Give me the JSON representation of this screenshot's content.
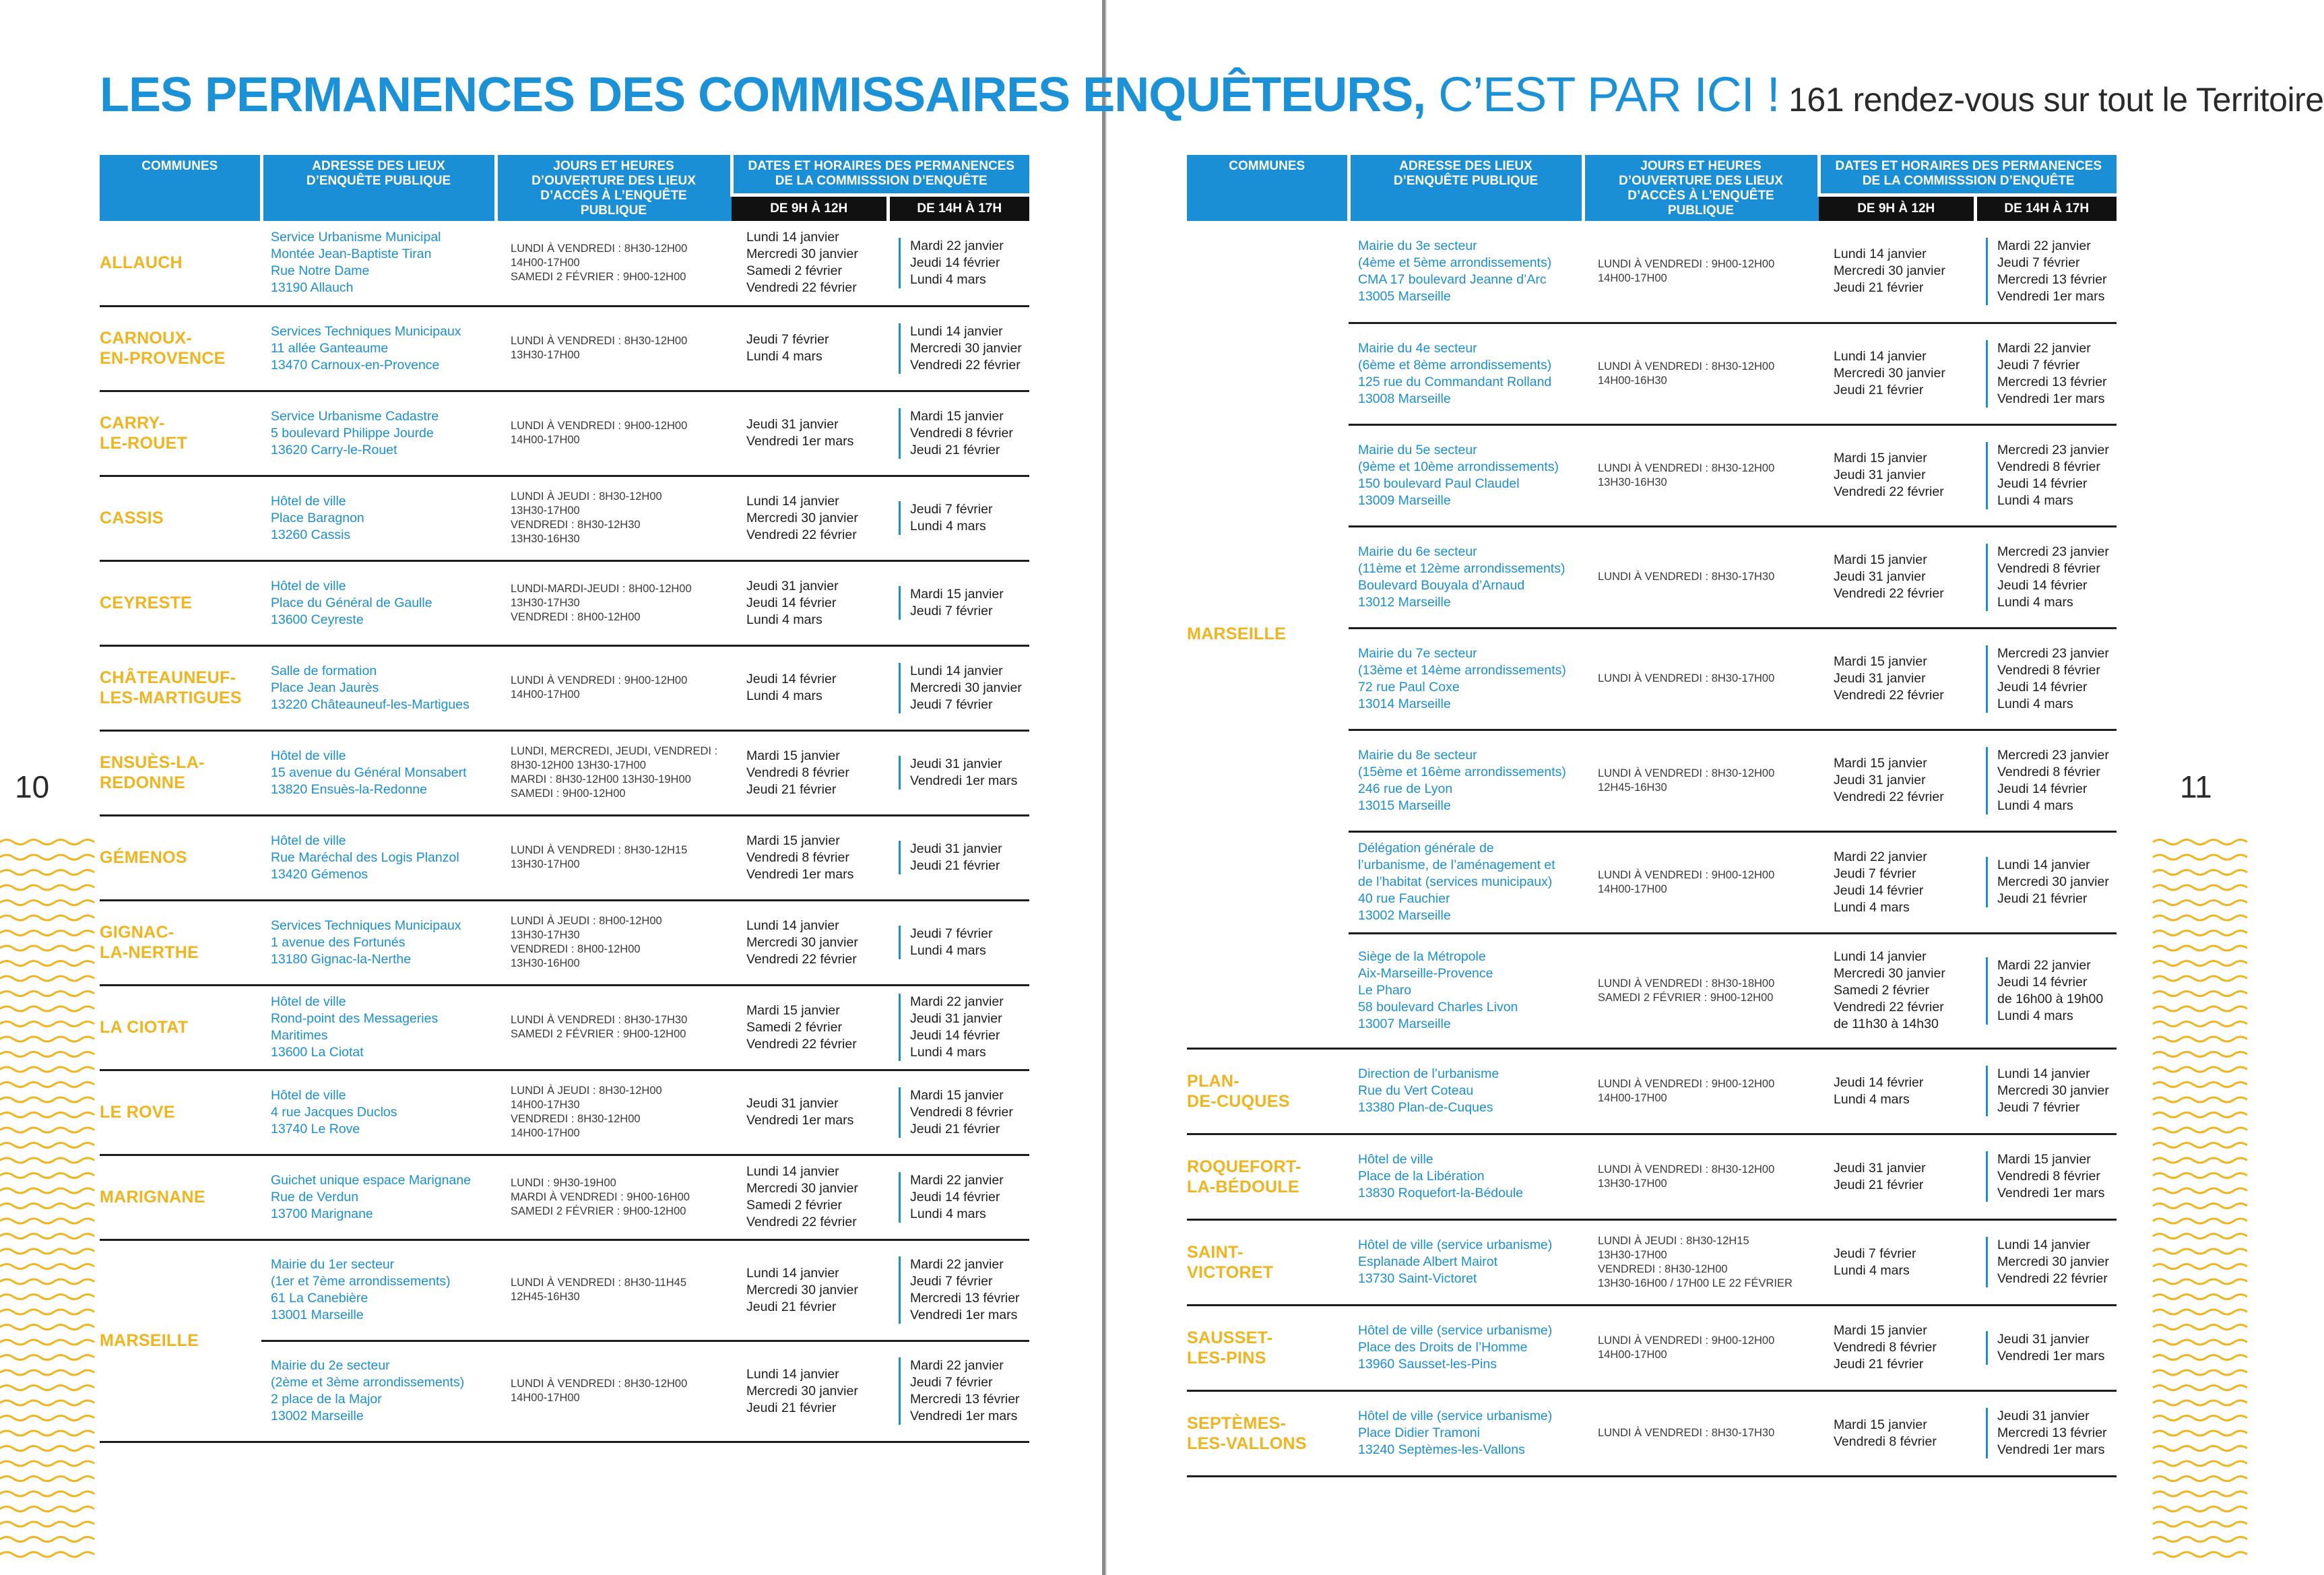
{
  "header": {
    "title_bold": "LES PERMANENCES DES COMMISSAIRES ENQUÊTEURS,",
    "title_light": " C’EST PAR ICI !",
    "title_sub": " 161 rendez-vous sur tout le Territoire"
  },
  "page_left": "10",
  "page_right": "11",
  "columns": {
    "communes": "COMMUNES",
    "adresse": "ADRESSE DES LIEUX\nD’ENQUÊTE PUBLIQUE",
    "jours": "JOURS ET HEURES\nD’OUVERTURE DES LIEUX\nD’ACCÈS À L’ENQUÊTE\nPUBLIQUE",
    "dates": "DATES ET HORAIRES DES PERMANENCES\nDE LA COMMISSSION D’ENQUÊTE",
    "am": "DE 9H À 12H",
    "pm": "DE 14H À 17H"
  },
  "left_rows": [
    {
      "commune": "ALLAUCH",
      "address": "Service Urbanisme Municipal\nMontée Jean-Baptiste Tiran\nRue Notre Dame\n13190 Allauch",
      "hours": "LUNDI À VENDREDI : 8H30-12H00\n14H00-17H00\nSAMEDI 2 FÉVRIER : 9H00-12H00",
      "am": "Lundi 14 janvier\nMercredi 30 janvier\nSamedi 2 février\nVendredi 22 février",
      "pm": "Mardi 22 janvier\nJeudi 14 février\nLundi 4 mars"
    },
    {
      "commune": "CARNOUX-\nEN-PROVENCE",
      "address": "Services Techniques Municipaux\n11 allée Ganteaume\n13470 Carnoux-en-Provence",
      "hours": "LUNDI À VENDREDI : 8H30-12H00\n13H30-17H00",
      "am": "Jeudi 7 février\nLundi 4 mars",
      "pm": "Lundi 14 janvier\nMercredi 30 janvier\nVendredi 22 février"
    },
    {
      "commune": "CARRY-\nLE-ROUET",
      "address": "Service Urbanisme Cadastre\n5 boulevard Philippe Jourde\n13620 Carry-le-Rouet",
      "hours": "LUNDI À VENDREDI : 9H00-12H00\n14H00-17H00",
      "am": "Jeudi 31 janvier\nVendredi 1er mars",
      "pm": "Mardi 15 janvier\nVendredi 8 février\nJeudi 21 février"
    },
    {
      "commune": "CASSIS",
      "address": "Hôtel de ville\nPlace Baragnon\n13260 Cassis",
      "hours": "LUNDI À JEUDI : 8H30-12H00\n13H30-17H00\nVENDREDI : 8H30-12H30\n13H30-16H30",
      "am": "Lundi 14 janvier\nMercredi 30 janvier\nVendredi 22 février",
      "pm": "Jeudi 7 février\nLundi 4 mars"
    },
    {
      "commune": "CEYRESTE",
      "address": "Hôtel de ville\nPlace du Général de Gaulle\n13600 Ceyreste",
      "hours": "LUNDI-MARDI-JEUDI : 8H00-12H00\n13H30-17H30\nVENDREDI : 8H00-12H00",
      "am": "Jeudi 31 janvier\nJeudi 14 février\nLundi 4 mars",
      "pm": "Mardi 15 janvier\nJeudi 7 février"
    },
    {
      "commune": "CHÂTEAUNEUF-\nLES-MARTIGUES",
      "address": "Salle de formation\nPlace Jean Jaurès\n13220 Châteauneuf-les-Martigues",
      "hours": "LUNDI À VENDREDI : 9H00-12H00\n14H00-17H00",
      "am": "Jeudi 14 février\nLundi 4 mars",
      "pm": "Lundi 14 janvier\nMercredi 30 janvier\nJeudi 7 février"
    },
    {
      "commune": "ENSUÈS-LA-\nREDONNE",
      "address": "Hôtel de ville\n15 avenue du Général Monsabert\n13820 Ensuès-la-Redonne",
      "hours": "LUNDI, MERCREDI, JEUDI, VENDREDI :\n8H30-12H00 13H30-17H00\nMARDI : 8H30-12H00 13H30-19H00\nSAMEDI : 9H00-12H00",
      "am": "Mardi 15 janvier\nVendredi 8 février\nJeudi 21 février",
      "pm": "Jeudi 31 janvier\nVendredi 1er mars"
    },
    {
      "commune": "GÉMENOS",
      "address": "Hôtel de ville\nRue Maréchal des Logis Planzol\n13420 Gémenos",
      "hours": "LUNDI À VENDREDI : 8H30-12H15\n13H30-17H00",
      "am": "Mardi 15 janvier\nVendredi 8 février\nVendredi 1er mars",
      "pm": "Jeudi 31 janvier\nJeudi 21 février"
    },
    {
      "commune": "GIGNAC-\nLA-NERTHE",
      "address": "Services Techniques Municipaux\n1 avenue des Fortunés\n13180 Gignac-la-Nerthe",
      "hours": "LUNDI À JEUDI : 8H00-12H00\n13H30-17H30\nVENDREDI : 8H00-12H00\n13H30-16H00",
      "am": "Lundi 14 janvier\nMercredi 30 janvier\nVendredi 22 février",
      "pm": "Jeudi 7 février\nLundi 4 mars"
    },
    {
      "commune": "LA CIOTAT",
      "address": "Hôtel de ville\nRond-point des Messageries\nMaritimes\n13600 La Ciotat",
      "hours": "LUNDI À VENDREDI : 8H30-17H30\nSAMEDI 2 FÉVRIER : 9H00-12H00",
      "am": "Mardi 15 janvier\nSamedi 2 février\nVendredi 22 février",
      "pm": "Mardi 22 janvier\nJeudi 31 janvier\nJeudi 14 février\nLundi 4 mars"
    },
    {
      "commune": "LE ROVE",
      "address": "Hôtel de ville\n4 rue Jacques Duclos\n13740 Le Rove",
      "hours": "LUNDI À JEUDI : 8H30-12H00\n14H00-17H30\nVENDREDI : 8H30-12H00\n14H00-17H00",
      "am": "Jeudi 31 janvier\nVendredi 1er mars",
      "pm": "Mardi 15 janvier\nVendredi 8 février\nJeudi 21 février"
    },
    {
      "commune": "MARIGNANE",
      "address": "Guichet unique espace Marignane\nRue de Verdun\n13700 Marignane",
      "hours": "LUNDI : 9H30-19H00\nMARDI À VENDREDI : 9H00-16H00\nSAMEDI 2 FÉVRIER : 9H00-12H00",
      "am": "Lundi 14 janvier\nMercredi 30 janvier\nSamedi 2 février\nVendredi 22 février",
      "pm": "Mardi 22 janvier\nJeudi 14 février\nLundi 4 mars"
    }
  ],
  "left_marseille": {
    "commune": "MARSEILLE",
    "rows": [
      {
        "address": "Mairie du 1er secteur\n(1er et 7ème arrondissements)\n61 La Canebière\n13001 Marseille",
        "hours": "LUNDI À VENDREDI : 8H30-11H45\n12H45-16H30",
        "am": "Lundi 14 janvier\nMercredi 30 janvier\nJeudi 21 février",
        "pm": "Mardi 22 janvier\nJeudi 7 février\nMercredi 13 février\nVendredi 1er mars"
      },
      {
        "address": "Mairie du 2e secteur\n(2ème et 3ème arrondissements)\n2 place de la Major\n13002 Marseille",
        "hours": "LUNDI À VENDREDI : 8H30-12H00\n14H00-17H00",
        "am": "Lundi 14 janvier\nMercredi 30 janvier\nJeudi 21 février",
        "pm": "Mardi 22 janvier\nJeudi 7 février\nMercredi 13 février\nVendredi 1er mars"
      }
    ]
  },
  "right_marseille": {
    "commune": "MARSEILLE",
    "rows": [
      {
        "address": "Mairie du 3e secteur\n(4ème et 5ème arrondissements)\nCMA 17 boulevard Jeanne d’Arc\n13005 Marseille",
        "hours": "LUNDI À VENDREDI : 9H00-12H00\n14H00-17H00",
        "am": "Lundi 14 janvier\nMercredi 30 janvier\nJeudi 21 février",
        "pm": "Mardi 22 janvier\nJeudi 7 février\nMercredi 13 février\nVendredi 1er mars"
      },
      {
        "address": "Mairie du 4e secteur\n(6ème et 8ème arrondissements)\n125 rue du Commandant Rolland\n13008 Marseille",
        "hours": "LUNDI À VENDREDI : 8H30-12H00\n14H00-16H30",
        "am": "Lundi 14 janvier\nMercredi 30 janvier\nJeudi 21 février",
        "pm": "Mardi 22 janvier\nJeudi 7 février\nMercredi 13 février\nVendredi 1er mars"
      },
      {
        "address": "Mairie du 5e secteur\n(9ème et 10ème arrondissements)\n150 boulevard Paul Claudel\n13009 Marseille",
        "hours": "LUNDI À VENDREDI : 8H30-12H00\n13H30-16H30",
        "am": "Mardi 15 janvier\nJeudi 31 janvier\nVendredi 22 février",
        "pm": "Mercredi 23 janvier\nVendredi 8 février\nJeudi 14 février\nLundi 4 mars"
      },
      {
        "address": "Mairie du 6e secteur\n(11ème et 12ème arrondissements)\nBoulevard Bouyala d’Arnaud\n13012 Marseille",
        "hours": "LUNDI À VENDREDI : 8H30-17H30",
        "am": "Mardi 15 janvier\nJeudi 31 janvier\nVendredi 22 février",
        "pm": "Mercredi 23 janvier\nVendredi 8 février\nJeudi 14 février\nLundi 4 mars"
      },
      {
        "address": "Mairie du 7e secteur\n(13ème et 14ème arrondissements)\n72 rue Paul Coxe\n13014 Marseille",
        "hours": "LUNDI À VENDREDI : 8H30-17H00",
        "am": "Mardi 15 janvier\nJeudi 31 janvier\nVendredi 22 février",
        "pm": "Mercredi 23 janvier\nVendredi 8 février\nJeudi 14 février\nLundi 4 mars"
      },
      {
        "address": "Mairie du 8e secteur\n(15ème et 16ème arrondissements)\n246 rue de Lyon\n13015 Marseille",
        "hours": "LUNDI À VENDREDI : 8H30-12H00\n12H45-16H30",
        "am": "Mardi 15 janvier\nJeudi 31 janvier\nVendredi 22 février",
        "pm": "Mercredi 23 janvier\nVendredi 8 février\nJeudi 14 février\nLundi 4 mars"
      },
      {
        "address": "Délégation générale de\nl’urbanisme, de l’aménagement et\nde l’habitat (services municipaux)\n40 rue Fauchier\n13002 Marseille",
        "hours": "LUNDI À VENDREDI : 9H00-12H00\n14H00-17H00",
        "am": "Mardi 22 janvier\nJeudi 7 février\nJeudi 14 février\nLundi 4 mars",
        "pm": "Lundi 14 janvier\nMercredi 30 janvier\nJeudi 21 février"
      },
      {
        "address": "Siège de la Métropole\nAix-Marseille-Provence\nLe Pharo\n58 boulevard Charles Livon\n13007 Marseille",
        "hours": "LUNDI À VENDREDI : 8H30-18H00\nSAMEDI 2 FÉVRIER : 9H00-12H00",
        "am": "Lundi 14 janvier\nMercredi 30 janvier\nSamedi 2 février\nVendredi 22 février\nde 11h30 à 14h30",
        "pm": "Mardi 22 janvier\nJeudi 14 février\nde 16h00 à 19h00\nLundi 4 mars"
      }
    ]
  },
  "right_rows": [
    {
      "commune": "PLAN-\nDE-CUQUES",
      "address": "Direction de l’urbanisme\nRue du Vert Coteau\n13380 Plan-de-Cuques",
      "hours": "LUNDI À VENDREDI : 9H00-12H00\n14H00-17H00",
      "am": "Jeudi 14 février\nLundi 4 mars",
      "pm": "Lundi 14 janvier\nMercredi 30 janvier\nJeudi 7 février"
    },
    {
      "commune": "ROQUEFORT-\nLA-BÉDOULE",
      "address": "Hôtel de ville\nPlace de la Libération\n13830 Roquefort-la-Bédoule",
      "hours": "LUNDI À VENDREDI : 8H30-12H00\n13H30-17H00",
      "am": "Jeudi 31 janvier\nJeudi 21 février",
      "pm": "Mardi 15 janvier\nVendredi 8 février\nVendredi 1er mars"
    },
    {
      "commune": "SAINT-\nVICTORET",
      "address": "Hôtel de ville (service urbanisme)\nEsplanade Albert Mairot\n13730 Saint-Victoret",
      "hours": "LUNDI À JEUDI : 8H30-12H15\n13H30-17H00\nVENDREDI : 8H30-12H00\n13H30-16H00 / 17H00 LE 22 FÉVRIER",
      "am": "Jeudi 7 février\nLundi 4 mars",
      "pm": "Lundi 14 janvier\nMercredi 30 janvier\nVendredi 22 février"
    },
    {
      "commune": "SAUSSET-\nLES-PINS",
      "address": "Hôtel de ville (service urbanisme)\nPlace des Droits de l’Homme\n13960 Sausset-les-Pins",
      "hours": "LUNDI À VENDREDI : 9H00-12H00\n14H00-17H00",
      "am": "Mardi 15 janvier\nVendredi 8 février\nJeudi 21 février",
      "pm": "Jeudi 31 janvier\nVendredi 1er mars"
    },
    {
      "commune": "SEPTÈMES-\nLES-VALLONS",
      "address": "Hôtel de ville (service urbanisme)\nPlace Didier Tramoni\n13240 Septèmes-les-Vallons",
      "hours": "LUNDI À VENDREDI : 8H30-17H30",
      "am": "Mardi 15 janvier\nVendredi 8 février",
      "pm": "Jeudi 31 janvier\nMercredi 13 février\nVendredi 1er mars"
    }
  ],
  "colors": {
    "blue": "#1a8fd6",
    "yellow": "#f0b51e",
    "black": "#111111"
  }
}
